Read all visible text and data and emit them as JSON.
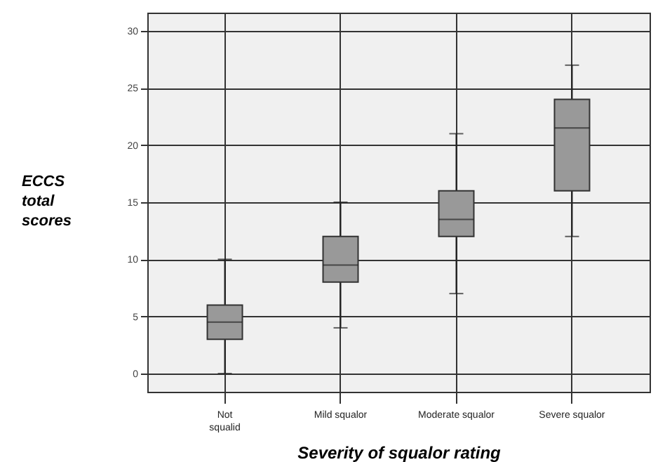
{
  "chart_data": {
    "type": "box",
    "xlabel": "Severity of squalor rating",
    "ylabel": "ECCS total scores",
    "categories": [
      "Not\nsqualid",
      "Mild squalor",
      "Moderate squalor",
      "Severe squalor"
    ],
    "boxes": [
      {
        "low": 0,
        "q1": 3,
        "median": 4.5,
        "q3": 6,
        "high": 10
      },
      {
        "low": 4,
        "q1": 8,
        "median": 9.5,
        "q3": 12,
        "high": 15
      },
      {
        "low": 7,
        "q1": 12,
        "median": 13.5,
        "q3": 16,
        "high": 21
      },
      {
        "low": 12,
        "q1": 16,
        "median": 21.5,
        "q3": 24,
        "high": 27
      }
    ],
    "color": "#999999",
    "ylim": [
      -1.6,
      31.6
    ],
    "yticks": [
      0,
      5,
      10,
      15,
      20,
      25,
      30
    ],
    "grid": true
  }
}
